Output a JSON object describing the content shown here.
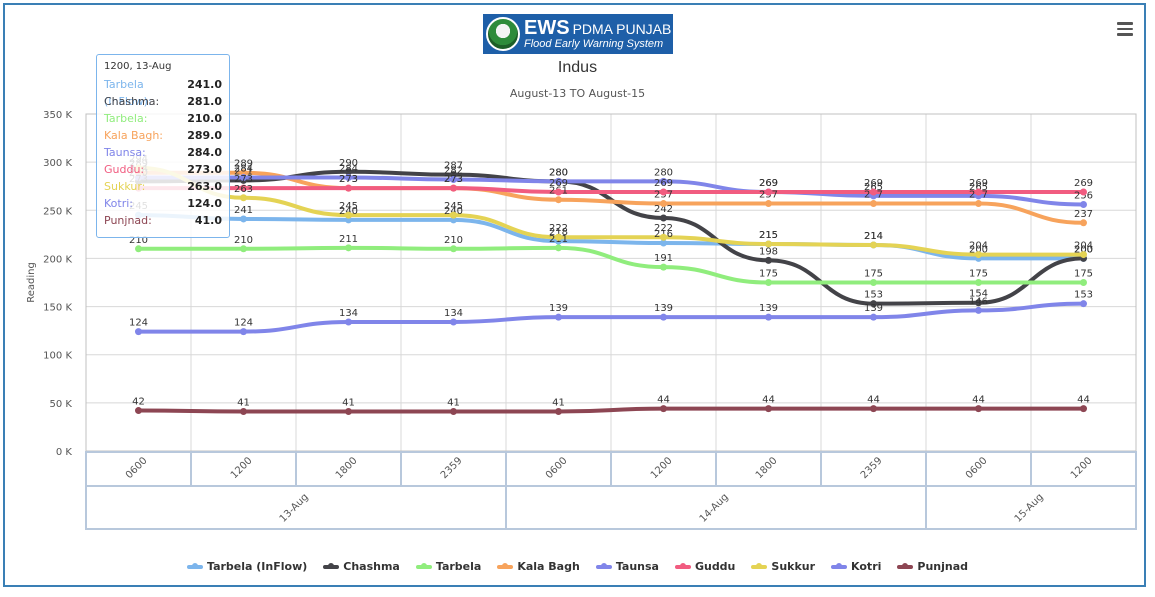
{
  "header": {
    "logo_title": "EWS",
    "logo_org": "PDMA PUNJAB",
    "logo_subtitle": "Flood Early Warning System",
    "menu_icon": "hamburger-menu-icon"
  },
  "tooltip": {
    "header": "1200, 13-Aug",
    "rows": [
      {
        "label": "Tarbela (InFlow):",
        "value": "241.0",
        "color": "#7cb5ec"
      },
      {
        "label": "Chashma:",
        "value": "281.0",
        "color": "#434348"
      },
      {
        "label": "Tarbela:",
        "value": "210.0",
        "color": "#90ed7d"
      },
      {
        "label": "Kala Bagh:",
        "value": "289.0",
        "color": "#f7a35c"
      },
      {
        "label": "Taunsa:",
        "value": "284.0",
        "color": "#8085e9"
      },
      {
        "label": "Guddu:",
        "value": "273.0",
        "color": "#f15c80"
      },
      {
        "label": "Sukkur:",
        "value": "263.0",
        "color": "#e4d354"
      },
      {
        "label": "Kotri:",
        "value": "124.0",
        "color": "#8085e9"
      },
      {
        "label": "Punjnad:",
        "value": "41.0",
        "color": "#8d4653"
      }
    ]
  },
  "chart_data": {
    "type": "line",
    "title": "Indus",
    "subtitle": "August-13 TO August-15",
    "ylabel": "Reading",
    "ylim": [
      0,
      350000
    ],
    "yticks": [
      "0 K",
      "50 K",
      "100 K",
      "150 K",
      "200 K",
      "250 K",
      "300 K",
      "350 K"
    ],
    "categories": [
      "0600",
      "1200",
      "1800",
      "2359",
      "0600",
      "1200",
      "1800",
      "2359",
      "0600",
      "1200"
    ],
    "groups": [
      {
        "label": "13-Aug",
        "span": 4
      },
      {
        "label": "14-Aug",
        "span": 4
      },
      {
        "label": "15-Aug",
        "span": 2
      }
    ],
    "grid": true,
    "legend_position": "bottom-center",
    "series": [
      {
        "name": "Tarbela (InFlow)",
        "color": "#7cb5ec",
        "values": [
          245,
          241,
          240,
          240,
          218,
          216,
          215,
          214,
          200,
          200
        ]
      },
      {
        "name": "Chashma",
        "color": "#434348",
        "values": [
          280,
          281,
          290,
          287,
          280,
          242,
          198,
          153,
          154,
          200
        ]
      },
      {
        "name": "Tarbela",
        "color": "#90ed7d",
        "values": [
          210,
          210,
          211,
          210,
          211,
          191,
          175,
          175,
          175,
          175
        ]
      },
      {
        "name": "Kala Bagh",
        "color": "#f7a35c",
        "values": [
          289,
          289,
          273,
          273,
          261,
          257,
          257,
          257,
          257,
          237
        ]
      },
      {
        "name": "Taunsa",
        "color": "#8085e9",
        "values": [
          284,
          284,
          284,
          282,
          280,
          280,
          269,
          265,
          265,
          256
        ]
      },
      {
        "name": "Guddu",
        "color": "#f15c80",
        "values": [
          273,
          273,
          273,
          273,
          269,
          269,
          269,
          269,
          269,
          269
        ]
      },
      {
        "name": "Sukkur",
        "color": "#e4d354",
        "values": [
          294,
          263,
          245,
          245,
          222,
          222,
          215,
          214,
          204,
          204
        ]
      },
      {
        "name": "Kotri",
        "color": "#8085e9",
        "values": [
          124,
          124,
          134,
          134,
          139,
          139,
          139,
          139,
          146,
          153
        ]
      },
      {
        "name": "Punjnad",
        "color": "#8d4653",
        "values": [
          42,
          41,
          41,
          41,
          41,
          44,
          44,
          44,
          44,
          44
        ]
      }
    ]
  }
}
